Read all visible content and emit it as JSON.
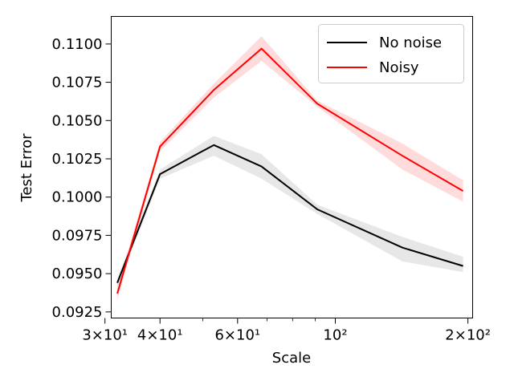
{
  "chart_data": {
    "type": "line",
    "xscale": "log",
    "xlabel": "Scale",
    "ylabel": "Test Error",
    "xlim": [
      31,
      205
    ],
    "ylim": [
      0.0921,
      0.1118
    ],
    "grid": false,
    "legend_position": "top-right",
    "x_ticks": [
      {
        "value": 30,
        "label": "3×10¹"
      },
      {
        "value": 40,
        "label": "4×10¹"
      },
      {
        "value": 60,
        "label": "6×10¹"
      },
      {
        "value": 100,
        "label": "10²"
      },
      {
        "value": 200,
        "label": "2×10²"
      }
    ],
    "x_minor_ticks": [
      50,
      70,
      80,
      90
    ],
    "y_ticks": [
      {
        "value": 0.0925,
        "label": "0.0925"
      },
      {
        "value": 0.095,
        "label": "0.0950"
      },
      {
        "value": 0.0975,
        "label": "0.0975"
      },
      {
        "value": 0.1,
        "label": "0.1000"
      },
      {
        "value": 0.1025,
        "label": "0.1025"
      },
      {
        "value": 0.105,
        "label": "0.1050"
      },
      {
        "value": 0.1075,
        "label": "0.1075"
      },
      {
        "value": 0.11,
        "label": "0.1100"
      }
    ],
    "series": [
      {
        "name": "No noise",
        "color": "#000000",
        "band_color": "#bbbbbb",
        "x": [
          32,
          40,
          53,
          68,
          91,
          142,
          195
        ],
        "y": [
          0.0944,
          0.1015,
          0.1034,
          0.102,
          0.0992,
          0.0967,
          0.0955
        ],
        "lower": [
          0.0941,
          0.1012,
          0.1027,
          0.1012,
          0.0989,
          0.0958,
          0.0951
        ],
        "upper": [
          0.0947,
          0.1018,
          0.104,
          0.1028,
          0.0995,
          0.0974,
          0.0961
        ]
      },
      {
        "name": "Noisy",
        "color": "#ff0000",
        "band_color": "#ff9999",
        "x": [
          32,
          40,
          53,
          68,
          91,
          142,
          195
        ],
        "y": [
          0.0937,
          0.1033,
          0.107,
          0.1097,
          0.1061,
          0.1027,
          0.1004
        ],
        "lower": [
          0.0933,
          0.103,
          0.1065,
          0.1089,
          0.1059,
          0.1018,
          0.0997
        ],
        "upper": [
          0.0941,
          0.1036,
          0.1074,
          0.1105,
          0.1063,
          0.1035,
          0.1011
        ]
      }
    ]
  }
}
